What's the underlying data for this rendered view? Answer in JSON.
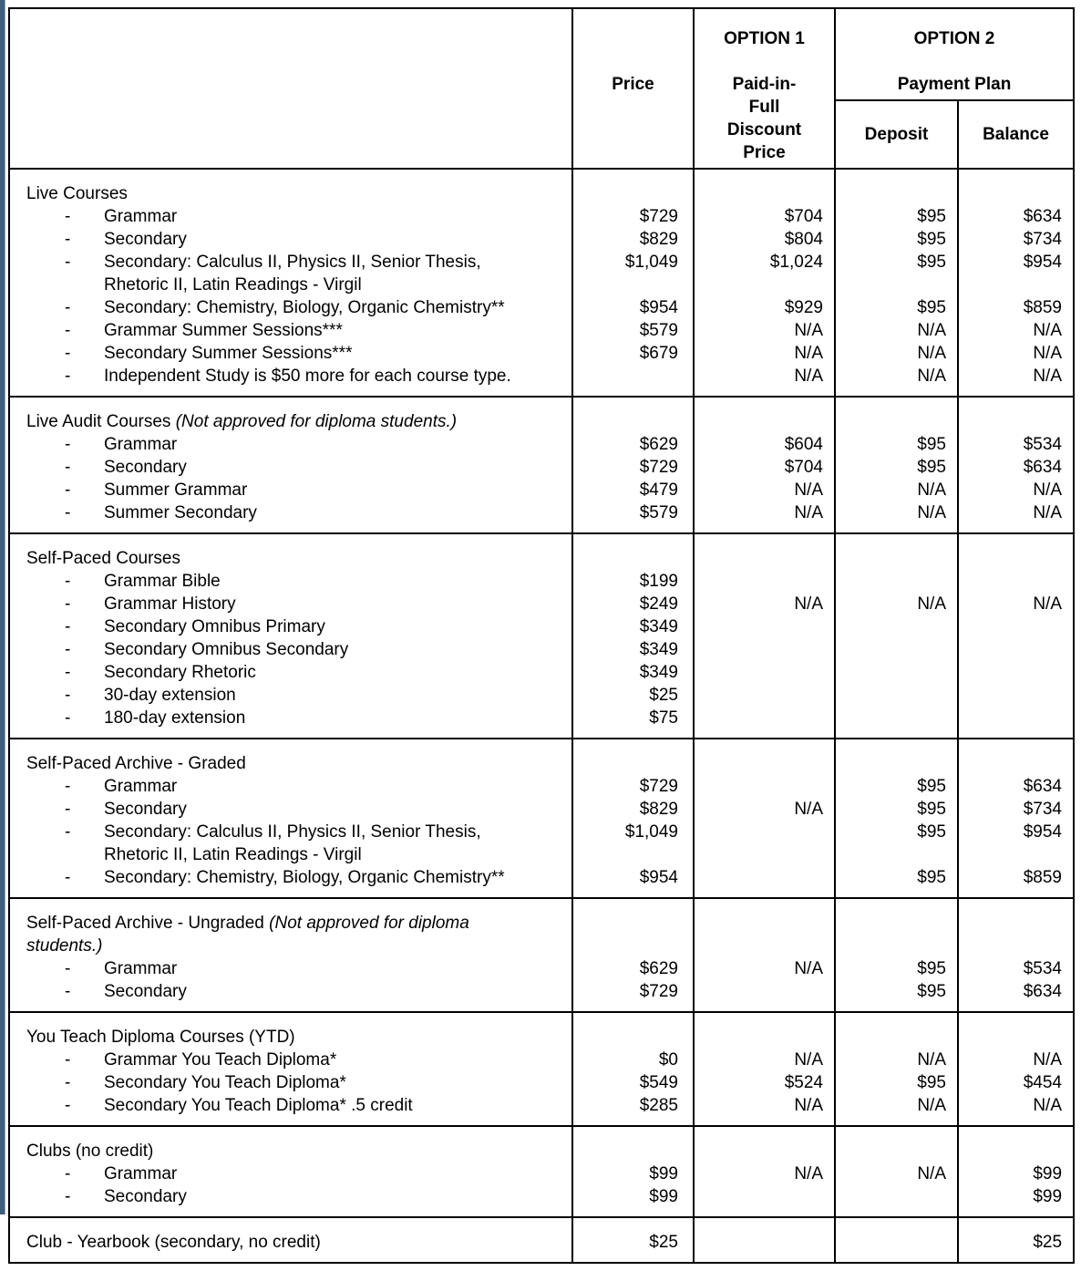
{
  "header": {
    "price_label": "Price",
    "option1": {
      "title": "OPTION 1",
      "subtitle_lines": [
        "Paid-in-",
        "Full",
        "Discount",
        "Price"
      ]
    },
    "option2": {
      "title": "OPTION 2",
      "subtitle": "Payment Plan",
      "deposit_label": "Deposit",
      "balance_label": "Balance"
    }
  },
  "sections": [
    {
      "name": "live-courses",
      "lines": [
        {
          "t": "title",
          "text": "Live Courses",
          "price": "",
          "o1": "",
          "dep": "",
          "bal": ""
        },
        {
          "t": "item",
          "text": "Grammar",
          "price": "$729",
          "o1": "$704",
          "dep": "$95",
          "bal": "$634"
        },
        {
          "t": "item",
          "text": "Secondary",
          "price": "$829",
          "o1": "$804",
          "dep": "$95",
          "bal": "$734"
        },
        {
          "t": "item",
          "text": "Secondary: Calculus II, Physics II, Senior Thesis,",
          "price": "$1,049",
          "o1": "$1,024",
          "dep": "$95",
          "bal": "$954"
        },
        {
          "t": "wrap",
          "text": "Rhetoric II, Latin Readings - Virgil",
          "price": "",
          "o1": "",
          "dep": "",
          "bal": ""
        },
        {
          "t": "item",
          "text": "Secondary: Chemistry, Biology, Organic Chemistry**",
          "price": "$954",
          "o1": "$929",
          "dep": "$95",
          "bal": "$859"
        },
        {
          "t": "item",
          "text": "Grammar Summer Sessions***",
          "price": "$579",
          "o1": "N/A",
          "dep": "N/A",
          "bal": "N/A"
        },
        {
          "t": "item",
          "text": "Secondary Summer Sessions***",
          "price": "$679",
          "o1": "N/A",
          "dep": "N/A",
          "bal": "N/A"
        },
        {
          "t": "item",
          "text": "Independent Study is $50 more for each course type.",
          "price": "",
          "o1": "N/A",
          "dep": "N/A",
          "bal": "N/A"
        }
      ]
    },
    {
      "name": "live-audit-courses",
      "lines": [
        {
          "t": "title",
          "text": "Live Audit Courses ",
          "italic": "(Not approved for diploma students.)",
          "price": "",
          "o1": "",
          "dep": "",
          "bal": ""
        },
        {
          "t": "item",
          "text": "Grammar",
          "price": "$629",
          "o1": "$604",
          "dep": "$95",
          "bal": "$534"
        },
        {
          "t": "item",
          "text": "Secondary",
          "price": "$729",
          "o1": "$704",
          "dep": "$95",
          "bal": "$634"
        },
        {
          "t": "item",
          "text": "Summer Grammar",
          "price": "$479",
          "o1": "N/A",
          "dep": "N/A",
          "bal": "N/A"
        },
        {
          "t": "item",
          "text": "Summer Secondary",
          "price": "$579",
          "o1": "N/A",
          "dep": "N/A",
          "bal": "N/A"
        }
      ]
    },
    {
      "name": "self-paced-courses",
      "lines": [
        {
          "t": "title",
          "text": "Self-Paced Courses",
          "price": "",
          "o1": "",
          "dep": "",
          "bal": ""
        },
        {
          "t": "item",
          "text": "Grammar Bible",
          "price": "$199",
          "o1": "",
          "dep": "",
          "bal": ""
        },
        {
          "t": "item",
          "text": "Grammar History",
          "price": "$249",
          "o1": "N/A",
          "dep": "N/A",
          "bal": "N/A"
        },
        {
          "t": "item",
          "text": "Secondary Omnibus Primary",
          "price": "$349",
          "o1": "",
          "dep": "",
          "bal": ""
        },
        {
          "t": "item",
          "text": "Secondary Omnibus Secondary",
          "price": "$349",
          "o1": "",
          "dep": "",
          "bal": ""
        },
        {
          "t": "item",
          "text": "Secondary Rhetoric",
          "price": "$349",
          "o1": "",
          "dep": "",
          "bal": ""
        },
        {
          "t": "item",
          "text": "30-day extension",
          "price": "$25",
          "o1": "",
          "dep": "",
          "bal": ""
        },
        {
          "t": "item",
          "text": "180-day extension",
          "price": "$75",
          "o1": "",
          "dep": "",
          "bal": ""
        }
      ]
    },
    {
      "name": "self-paced-archive-graded",
      "lines": [
        {
          "t": "title",
          "text": "Self-Paced Archive - Graded",
          "price": "",
          "o1": "",
          "dep": "",
          "bal": ""
        },
        {
          "t": "item",
          "text": "Grammar",
          "price": "$729",
          "o1": "",
          "dep": "$95",
          "bal": "$634"
        },
        {
          "t": "item",
          "text": "Secondary",
          "price": "$829",
          "o1": "N/A",
          "dep": "$95",
          "bal": "$734"
        },
        {
          "t": "item",
          "text": "Secondary: Calculus II, Physics II, Senior Thesis,",
          "price": "$1,049",
          "o1": "",
          "dep": "$95",
          "bal": "$954"
        },
        {
          "t": "wrap",
          "text": "Rhetoric II, Latin Readings - Virgil",
          "price": "",
          "o1": "",
          "dep": "",
          "bal": ""
        },
        {
          "t": "item",
          "text": "Secondary: Chemistry, Biology, Organic Chemistry**",
          "price": "$954",
          "o1": "",
          "dep": "$95",
          "bal": "$859"
        }
      ]
    },
    {
      "name": "self-paced-archive-ungraded",
      "lines": [
        {
          "t": "title",
          "text": "Self-Paced Archive - Ungraded ",
          "italic": "(Not approved for diploma",
          "price": "",
          "o1": "",
          "dep": "",
          "bal": ""
        },
        {
          "t": "titlewrap",
          "text": "",
          "italic": "students.)",
          "price": "",
          "o1": "",
          "dep": "",
          "bal": ""
        },
        {
          "t": "item",
          "text": "Grammar",
          "price": "$629",
          "o1": "N/A",
          "dep": "$95",
          "bal": "$534"
        },
        {
          "t": "item",
          "text": "Secondary",
          "price": "$729",
          "o1": "",
          "dep": "$95",
          "bal": "$634"
        }
      ]
    },
    {
      "name": "you-teach-diploma-courses",
      "lines": [
        {
          "t": "title",
          "text": "You Teach Diploma Courses (YTD)",
          "price": "",
          "o1": "",
          "dep": "",
          "bal": ""
        },
        {
          "t": "item",
          "text": "Grammar You Teach Diploma*",
          "price": "$0",
          "o1": "N/A",
          "dep": "N/A",
          "bal": "N/A"
        },
        {
          "t": "item",
          "text": "Secondary You Teach Diploma*",
          "price": "$549",
          "o1": "$524",
          "dep": "$95",
          "bal": "$454"
        },
        {
          "t": "item",
          "text": "Secondary You Teach Diploma* .5 credit",
          "price": "$285",
          "o1": "N/A",
          "dep": "N/A",
          "bal": "N/A"
        }
      ]
    },
    {
      "name": "clubs",
      "lines": [
        {
          "t": "title",
          "text": "Clubs (no credit)",
          "price": "",
          "o1": "",
          "dep": "",
          "bal": ""
        },
        {
          "t": "item",
          "text": "Grammar",
          "price": "$99",
          "o1": "N/A",
          "dep": "N/A",
          "bal": "$99"
        },
        {
          "t": "item",
          "text": "Secondary",
          "price": "$99",
          "o1": "",
          "dep": "",
          "bal": "$99"
        }
      ]
    },
    {
      "name": "club-yearbook",
      "lines": [
        {
          "t": "title",
          "text": "Club - Yearbook (secondary, no credit)",
          "price": "$25",
          "o1": "",
          "dep": "",
          "bal": "$25"
        }
      ]
    }
  ]
}
